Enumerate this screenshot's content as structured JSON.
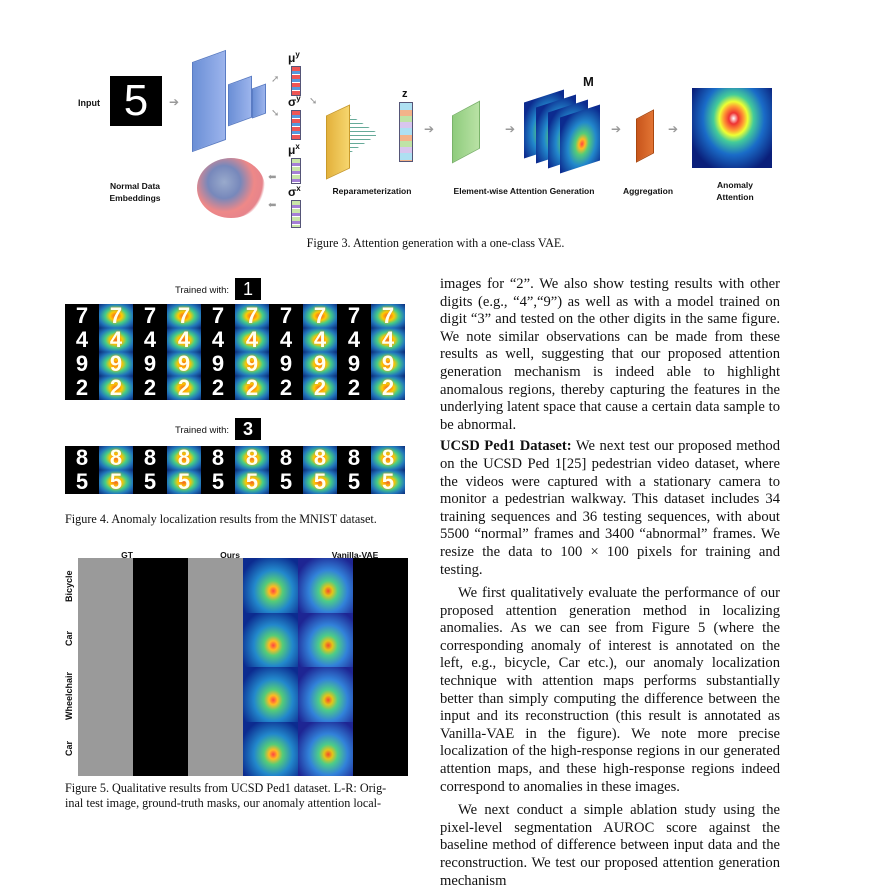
{
  "figure3": {
    "labels": {
      "input": "Input",
      "mu_y": "μ",
      "mu_y_sup": "y",
      "sigma_y": "σ",
      "sigma_y_sup": "y",
      "mu_x": "μ",
      "mu_x_sup": "x",
      "sigma_x": "σ",
      "sigma_x_sup": "x",
      "z": "z",
      "m": "M",
      "normal_data_line1": "Normal Data",
      "normal_data_line2": "Embeddings",
      "reparam": "Reparameterization",
      "elementwise": "Element-wise Attention Generation",
      "aggregation": "Aggregation",
      "anomaly_line1": "Anomaly",
      "anomaly_line2": "Attention",
      "input_digit": "5"
    },
    "caption": "Figure 3. Attention generation with a one-class VAE."
  },
  "figure4": {
    "trained_with_1": "Trained with:",
    "trained_digit_1": "1",
    "trained_with_2": "Trained with:",
    "trained_digit_2": "3",
    "grid1": [
      [
        "7",
        "7",
        "7",
        "7",
        "7",
        "7",
        "7",
        "7",
        "7",
        "7"
      ],
      [
        "4",
        "4",
        "4",
        "4",
        "4",
        "4",
        "4",
        "4",
        "4",
        "4"
      ],
      [
        "9",
        "9",
        "9",
        "9",
        "9",
        "9",
        "9",
        "9",
        "9",
        "9"
      ],
      [
        "2",
        "2",
        "2",
        "2",
        "2",
        "2",
        "2",
        "2",
        "2",
        "2"
      ]
    ],
    "grid2": [
      [
        "8",
        "8",
        "8",
        "8",
        "8",
        "8",
        "8",
        "8",
        "8",
        "8"
      ],
      [
        "5",
        "5",
        "5",
        "5",
        "5",
        "5",
        "5",
        "5",
        "5",
        "5"
      ]
    ],
    "caption": "Figure 4. Anomaly localization results from the MNIST dataset."
  },
  "figure5": {
    "col_headers": [
      "GT",
      "Ours",
      "Vanilla-VAE"
    ],
    "row_labels": [
      "Bicycle",
      "Car",
      "Wheelchair",
      "Car"
    ],
    "caption_line1": "Figure 5. Qualitative results from UCSD Ped1 dataset. L-R: Orig-",
    "caption_line2": "inal test image, ground-truth masks, our anomaly attention local-"
  },
  "right_column": {
    "para1": "images for “2”. We also show testing results with other digits (e.g., “4”,“9”) as well as with a model trained on digit “3” and tested on the other digits in the same figure. We note similar observations can be made from these results as well, suggesting that our proposed attention generation mechanism is indeed able to highlight anomalous regions, thereby capturing the features in the underlying latent space that cause a certain data sample to be abnormal.",
    "para2_head": "UCSD Ped1 Dataset:",
    "para2": " We next test our proposed method on the UCSD Ped 1[25] pedestrian video dataset, where the videos were captured with a stationary camera to monitor a pedestrian walkway. This dataset includes 34 training sequences and 36 testing sequences, with about 5500 “normal” frames and 3400 “abnormal” frames. We resize the data to 100 × 100 pixels for training and testing.",
    "para3": "We first qualitatively evaluate the performance of our proposed attention generation method in localizing anomalies. As we can see from Figure 5 (where the corresponding anomaly of interest is annotated on the left, e.g., bicycle, Car etc.), our anomaly localization technique with attention maps performs substantially better than simply computing the difference between the input and its reconstruction (this result is annotated as Vanilla-VAE in the figure). We note more precise localization of the high-response regions in our generated attention maps, and these high-response regions indeed correspond to anomalies in these images.",
    "para4": "We next conduct a simple ablation study using the pixel-level segmentation AUROC score against the baseline method of difference between input data and the reconstruction. We test our proposed attention generation mechanism"
  }
}
